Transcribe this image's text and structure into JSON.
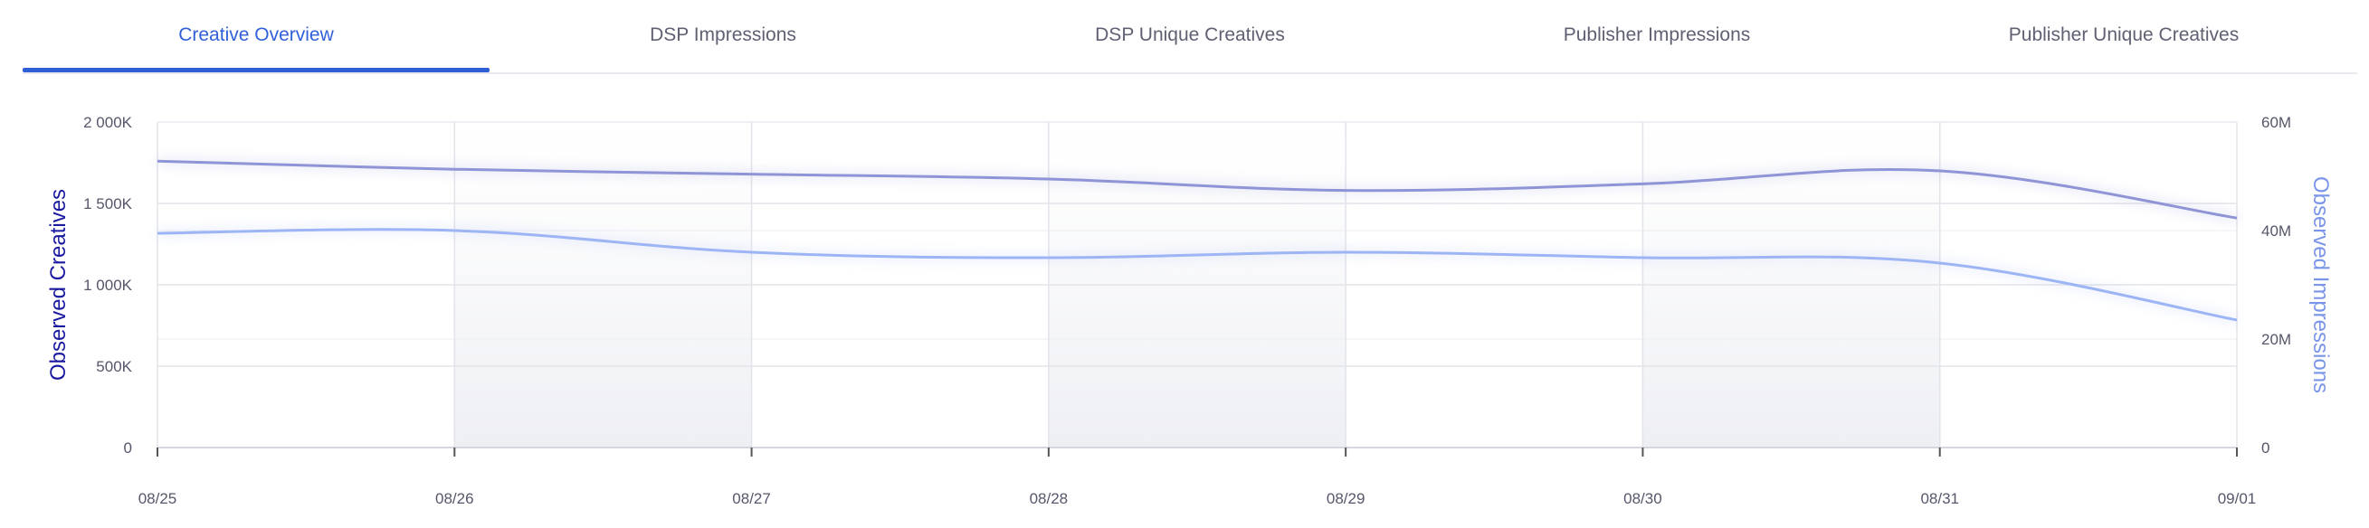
{
  "tabs": [
    {
      "label": "Creative Overview",
      "active": true
    },
    {
      "label": "DSP Impressions",
      "active": false
    },
    {
      "label": "DSP Unique Creatives",
      "active": false
    },
    {
      "label": "Publisher Impressions",
      "active": false
    },
    {
      "label": "Publisher Unique Creatives",
      "active": false
    }
  ],
  "colors": {
    "accent": "#2f5fd6",
    "creatives_line": "#8f94d6",
    "impressions_line": "#9db5f5",
    "left_axis_title": "#1a1aa0",
    "right_axis_title": "#7b95e8"
  },
  "chart_data": {
    "type": "line",
    "x": [
      "08/25",
      "08/26",
      "08/27",
      "08/28",
      "08/29",
      "08/30",
      "08/31",
      "09/01"
    ],
    "y_left": {
      "label": "Observed Creatives",
      "ticks": [
        "0",
        "500K",
        "1 000K",
        "1 500K",
        "2 000K"
      ],
      "range": [
        0,
        2000000
      ]
    },
    "y_right": {
      "label": "Observed Impressions",
      "ticks": [
        "0",
        "20M",
        "40M",
        "60M"
      ],
      "range": [
        0,
        60000000
      ]
    },
    "series": [
      {
        "axis": "left",
        "values": [
          1760000,
          1710000,
          1680000,
          1650000,
          1580000,
          1620000,
          1700000,
          1410000
        ]
      },
      {
        "axis": "right",
        "values": [
          39500000,
          40000000,
          36000000,
          35000000,
          36000000,
          35000000,
          34000000,
          23500000
        ]
      }
    ],
    "grid": true,
    "legend": "none"
  }
}
